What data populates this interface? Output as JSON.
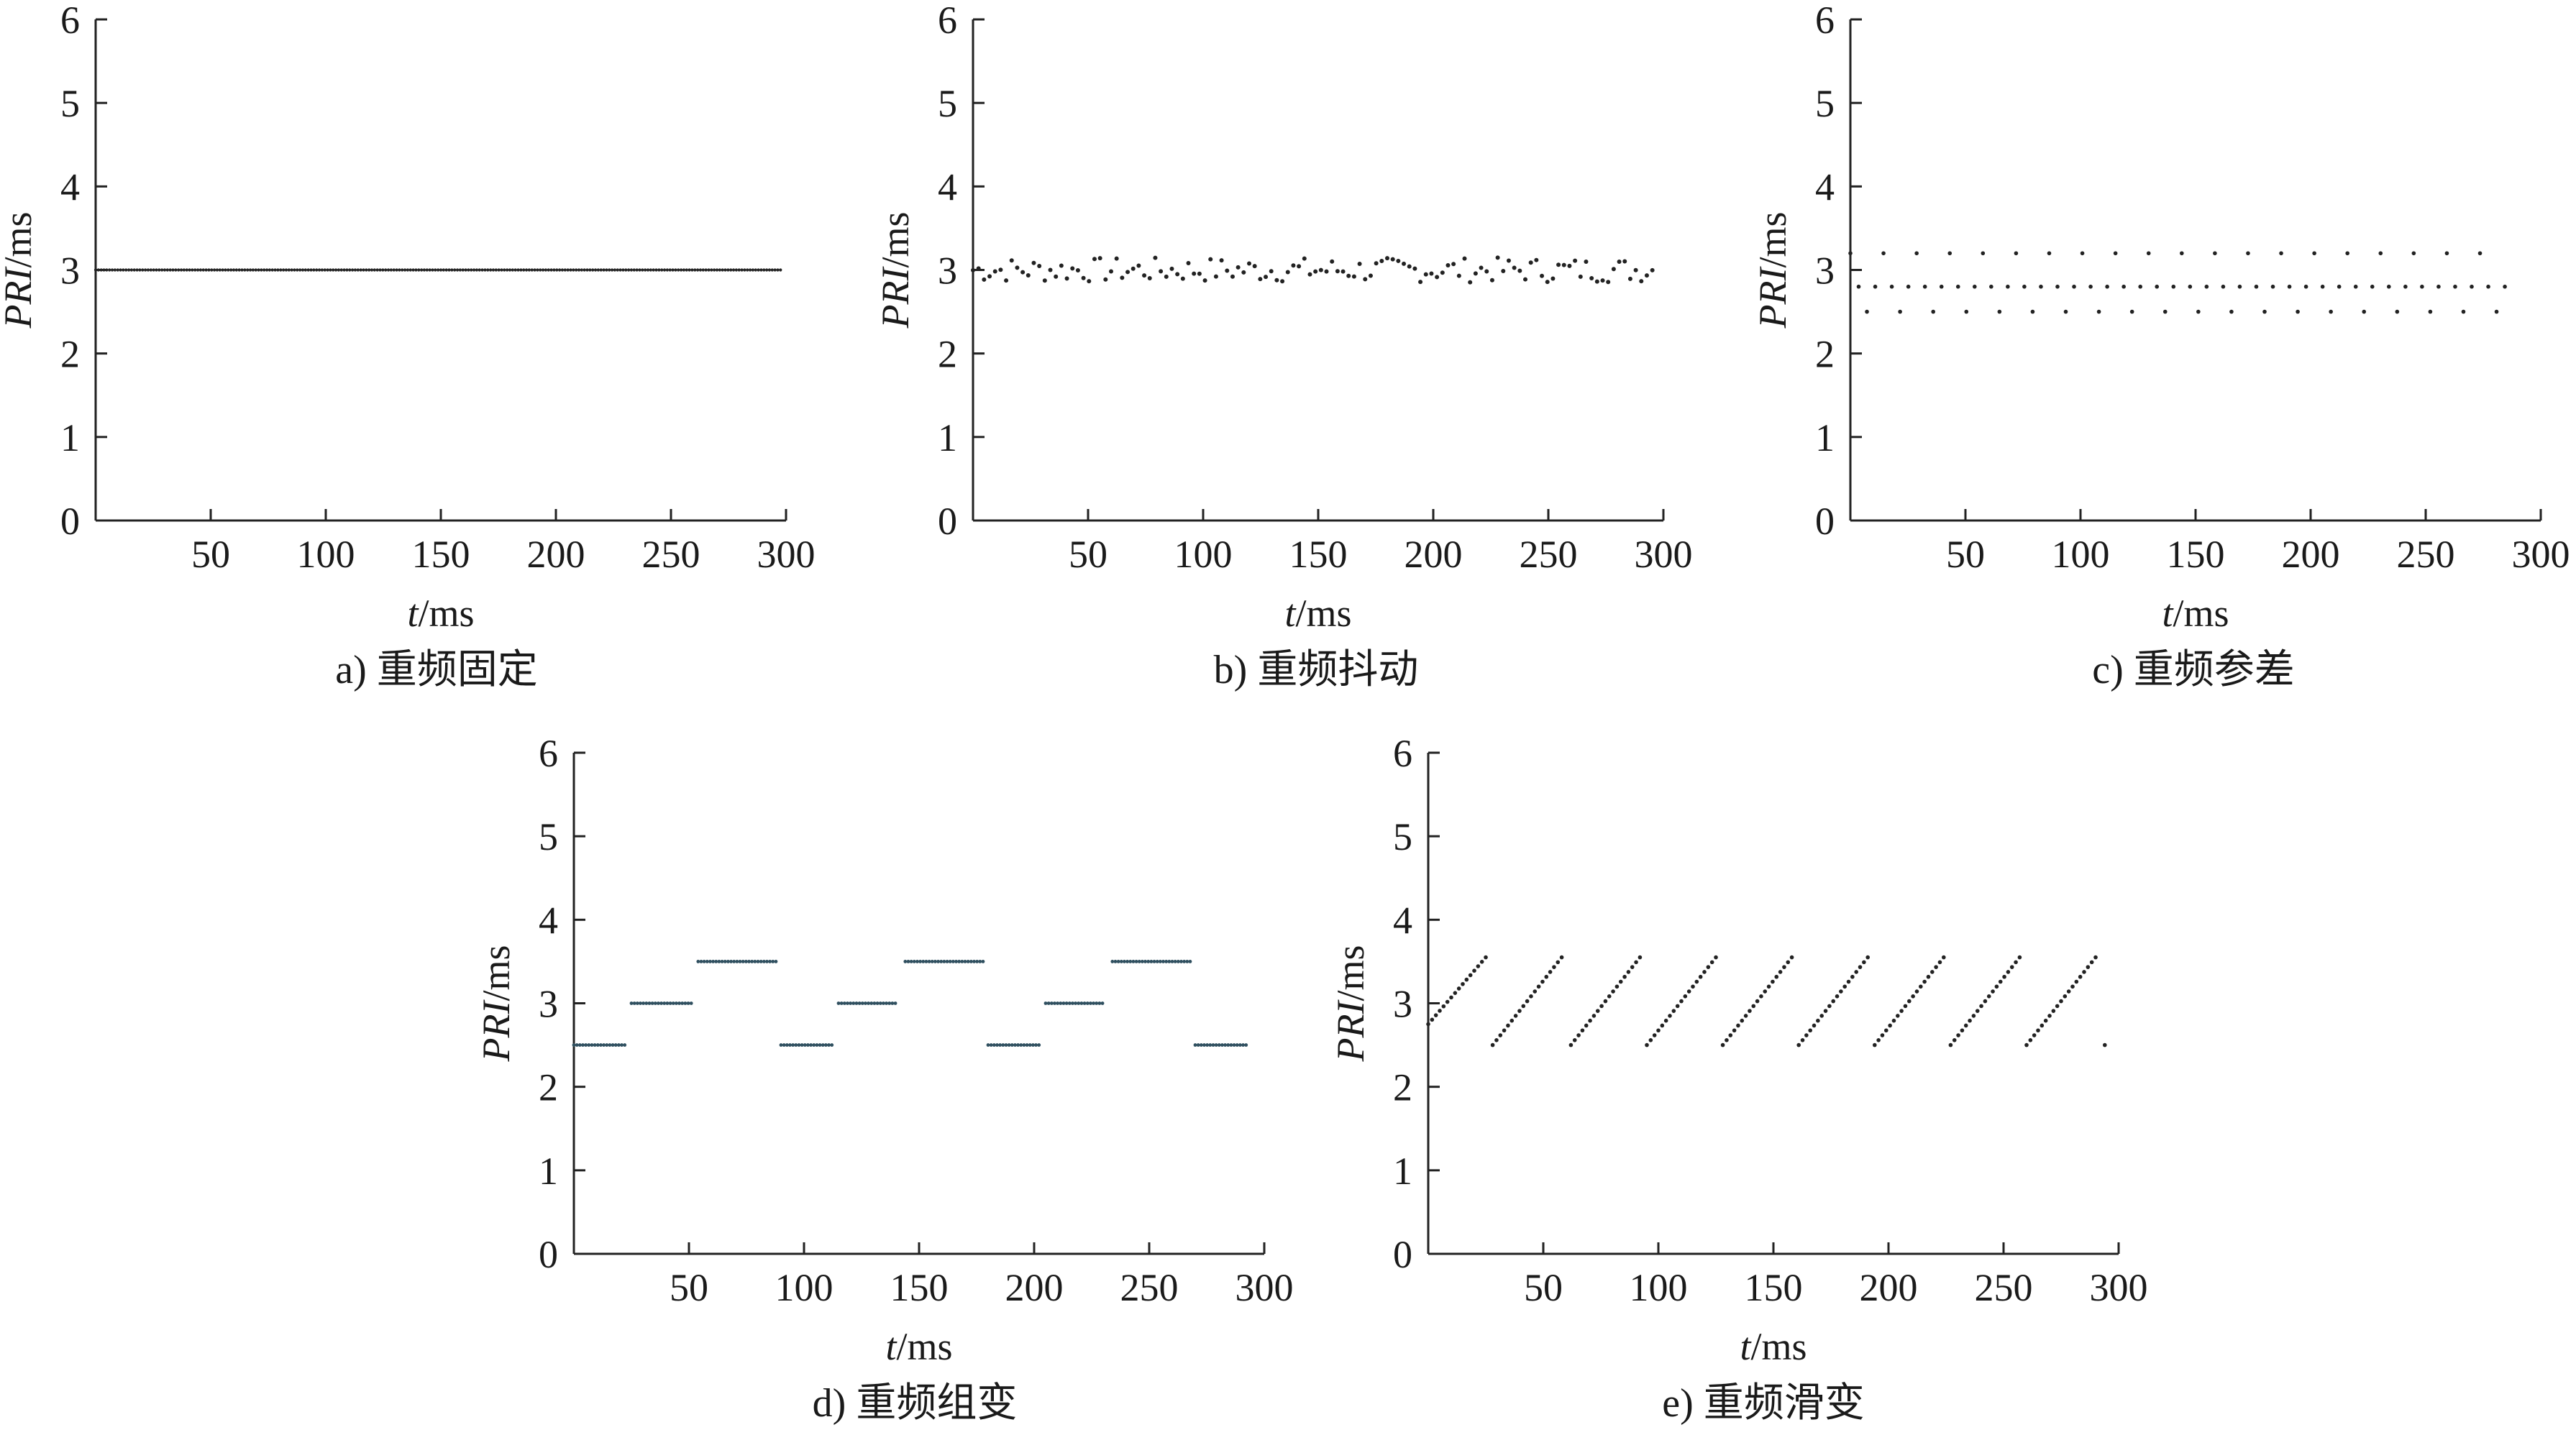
{
  "chart_data": [
    {
      "type": "scatter",
      "pattern": "fixed",
      "caption": "a) 重频固定",
      "xlabel": {
        "var": "t",
        "unit": "/ms"
      },
      "ylabel": {
        "var": "PRI",
        "unit": "/ms"
      },
      "xlim": [
        0,
        300
      ],
      "ylim": [
        0,
        6
      ],
      "xticks": [
        "50",
        "100",
        "150",
        "200",
        "250",
        "300"
      ],
      "yticks": [
        "0",
        "1",
        "2",
        "3",
        "4",
        "5",
        "6"
      ],
      "point_color": "#222222",
      "series": {
        "x_range": [
          0,
          298
        ],
        "pri_ms": 3.0
      }
    },
    {
      "type": "scatter",
      "pattern": "jitter",
      "caption": "b) 重频抖动",
      "xlabel": {
        "var": "t",
        "unit": "/ms"
      },
      "ylabel": {
        "var": "PRI",
        "unit": "/ms"
      },
      "xlim": [
        0,
        300
      ],
      "ylim": [
        0,
        6
      ],
      "xticks": [
        "50",
        "100",
        "150",
        "200",
        "250",
        "300"
      ],
      "yticks": [
        "0",
        "1",
        "2",
        "3",
        "4",
        "5",
        "6"
      ],
      "point_color": "#222222",
      "series": {
        "x_range": [
          0,
          296
        ],
        "pri_ms": 3.0,
        "jitter_ms": 0.15
      }
    },
    {
      "type": "scatter",
      "pattern": "stagger",
      "caption": "c) 重频参差",
      "xlabel": {
        "var": "t",
        "unit": "/ms"
      },
      "ylabel": {
        "var": "PRI",
        "unit": "/ms"
      },
      "xlim": [
        0,
        300
      ],
      "ylim": [
        0,
        6
      ],
      "xticks": [
        "50",
        "100",
        "150",
        "200",
        "250",
        "300"
      ],
      "yticks": [
        "0",
        "1",
        "2",
        "3",
        "4",
        "5",
        "6"
      ],
      "point_color": "#222222",
      "series": {
        "x_range": [
          0,
          285
        ],
        "pri_cycle_ms": [
          3.2,
          2.8,
          2.5,
          2.8
        ]
      }
    },
    {
      "type": "scatter",
      "pattern": "group",
      "caption": "d) 重频组变",
      "xlabel": {
        "var": "t",
        "unit": "/ms"
      },
      "ylabel": {
        "var": "PRI",
        "unit": "/ms"
      },
      "xlim": [
        0,
        300
      ],
      "ylim": [
        0,
        6
      ],
      "xticks": [
        "50",
        "100",
        "150",
        "200",
        "250",
        "300"
      ],
      "yticks": [
        "0",
        "1",
        "2",
        "3",
        "4",
        "5",
        "6"
      ],
      "point_color": "#2f4f5f",
      "series": [
        {
          "x_range": [
            0,
            23
          ],
          "pri_ms": 2.5
        },
        {
          "x_range": [
            25,
            51
          ],
          "pri_ms": 3.0
        },
        {
          "x_range": [
            54,
            88
          ],
          "pri_ms": 3.5
        },
        {
          "x_range": [
            90,
            113
          ],
          "pri_ms": 2.5
        },
        {
          "x_range": [
            115,
            141
          ],
          "pri_ms": 3.0
        },
        {
          "x_range": [
            144,
            178
          ],
          "pri_ms": 3.5
        },
        {
          "x_range": [
            180,
            203
          ],
          "pri_ms": 2.5
        },
        {
          "x_range": [
            205,
            231
          ],
          "pri_ms": 3.0
        },
        {
          "x_range": [
            234,
            268
          ],
          "pri_ms": 3.5
        },
        {
          "x_range": [
            270,
            293
          ],
          "pri_ms": 2.5
        }
      ]
    },
    {
      "type": "scatter",
      "pattern": "slide",
      "caption": "e) 重频滑变",
      "xlabel": {
        "var": "t",
        "unit": "/ms"
      },
      "ylabel": {
        "var": "PRI",
        "unit": "/ms"
      },
      "xlim": [
        0,
        300
      ],
      "ylim": [
        0,
        6
      ],
      "xticks": [
        "50",
        "100",
        "150",
        "200",
        "250",
        "300"
      ],
      "yticks": [
        "0",
        "1",
        "2",
        "3",
        "4",
        "5",
        "6"
      ],
      "point_color": "#222222",
      "series": [
        {
          "x_start": 0,
          "x_end": 25,
          "pri_start": 2.75,
          "pri_end": 3.55
        },
        {
          "x_start": 28,
          "x_end": 58,
          "pri_start": 2.5,
          "pri_end": 3.55
        },
        {
          "x_start": 62,
          "x_end": 92,
          "pri_start": 2.5,
          "pri_end": 3.55
        },
        {
          "x_start": 95,
          "x_end": 125,
          "pri_start": 2.5,
          "pri_end": 3.55
        },
        {
          "x_start": 128,
          "x_end": 158,
          "pri_start": 2.5,
          "pri_end": 3.55
        },
        {
          "x_start": 161,
          "x_end": 191,
          "pri_start": 2.5,
          "pri_end": 3.55
        },
        {
          "x_start": 194,
          "x_end": 224,
          "pri_start": 2.5,
          "pri_end": 3.55
        },
        {
          "x_start": 227,
          "x_end": 257,
          "pri_start": 2.5,
          "pri_end": 3.55
        },
        {
          "x_start": 260,
          "x_end": 290,
          "pri_start": 2.5,
          "pri_end": 3.55
        },
        {
          "x_start": 294,
          "x_end": 294,
          "pri_start": 2.5,
          "pri_end": 2.5
        }
      ]
    }
  ]
}
